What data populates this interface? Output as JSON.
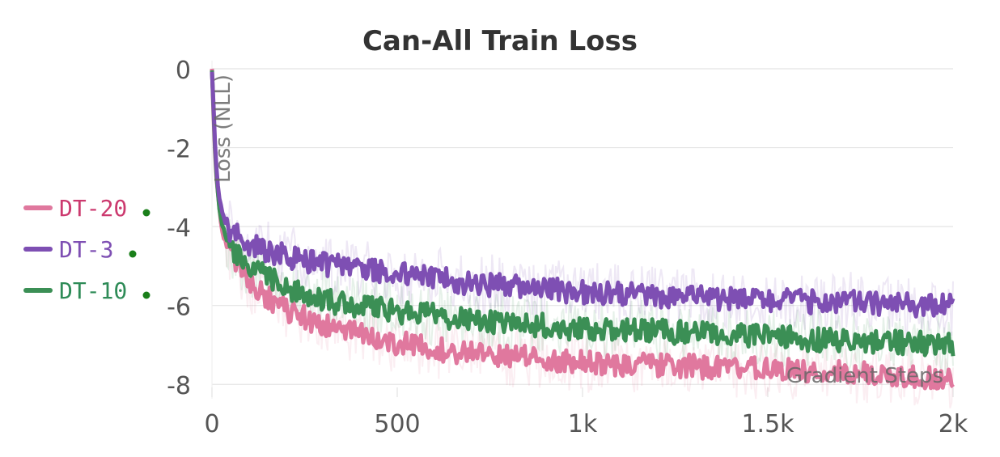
{
  "chart_data": {
    "type": "line",
    "title": "Can-All Train Loss",
    "xlabel": "Gradient Steps",
    "ylabel": "Loss (NLL)",
    "xlim": [
      0,
      2000
    ],
    "ylim": [
      -8.2,
      0
    ],
    "x_ticks": [
      0,
      500,
      1000,
      1500,
      2000
    ],
    "x_tick_labels": [
      "0",
      "500",
      "1k",
      "1.5k",
      "2k"
    ],
    "y_ticks": [
      0,
      -2,
      -4,
      -6,
      -8
    ],
    "y_tick_labels": [
      "0",
      "-2",
      "-4",
      "-6",
      "-8"
    ],
    "grid": "horizontal",
    "legend_position": "left",
    "legend_dot_color": "#1a7f1a",
    "series": [
      {
        "name": "DT-20",
        "color": "#e0789e",
        "label_color": "#cc3a6f",
        "x": [
          0,
          10,
          20,
          30,
          50,
          75,
          100,
          150,
          200,
          250,
          300,
          350,
          400,
          500,
          600,
          700,
          800,
          900,
          1000,
          1100,
          1200,
          1300,
          1400,
          1500,
          1600,
          1700,
          1800,
          1900,
          2000
        ],
        "y": [
          0,
          -2.6,
          -3.6,
          -4.2,
          -4.7,
          -5.1,
          -5.4,
          -5.8,
          -6.1,
          -6.3,
          -6.5,
          -6.6,
          -6.75,
          -6.95,
          -7.1,
          -7.2,
          -7.3,
          -7.35,
          -7.45,
          -7.5,
          -7.5,
          -7.55,
          -7.6,
          -7.6,
          -7.65,
          -7.7,
          -7.75,
          -7.8,
          -7.9
        ]
      },
      {
        "name": "DT-3",
        "color": "#7e4fb3",
        "label_color": "#7e4fb3",
        "x": [
          0,
          10,
          20,
          30,
          50,
          75,
          100,
          150,
          200,
          250,
          300,
          350,
          400,
          500,
          600,
          700,
          800,
          900,
          1000,
          1100,
          1200,
          1300,
          1400,
          1500,
          1600,
          1700,
          1800,
          1900,
          2000
        ],
        "y": [
          0,
          -2.3,
          -3.3,
          -3.8,
          -4.1,
          -4.3,
          -4.45,
          -4.6,
          -4.75,
          -4.85,
          -4.95,
          -5.0,
          -5.05,
          -5.2,
          -5.3,
          -5.45,
          -5.5,
          -5.6,
          -5.65,
          -5.7,
          -5.75,
          -5.8,
          -5.85,
          -5.85,
          -5.9,
          -5.9,
          -5.95,
          -6.0,
          -6.0
        ]
      },
      {
        "name": "DT-10",
        "color": "#3b8f55",
        "label_color": "#2e8b57",
        "x": [
          0,
          10,
          20,
          30,
          50,
          75,
          100,
          150,
          200,
          250,
          300,
          350,
          400,
          500,
          600,
          700,
          800,
          900,
          1000,
          1100,
          1200,
          1300,
          1400,
          1500,
          1600,
          1700,
          1800,
          1900,
          2000
        ],
        "y": [
          0,
          -2.5,
          -3.5,
          -4.0,
          -4.5,
          -4.8,
          -5.0,
          -5.3,
          -5.55,
          -5.7,
          -5.85,
          -5.95,
          -6.0,
          -6.15,
          -6.25,
          -6.35,
          -6.45,
          -6.5,
          -6.6,
          -6.6,
          -6.65,
          -6.7,
          -6.75,
          -6.8,
          -6.85,
          -6.9,
          -6.9,
          -6.95,
          -7.0
        ]
      }
    ]
  }
}
